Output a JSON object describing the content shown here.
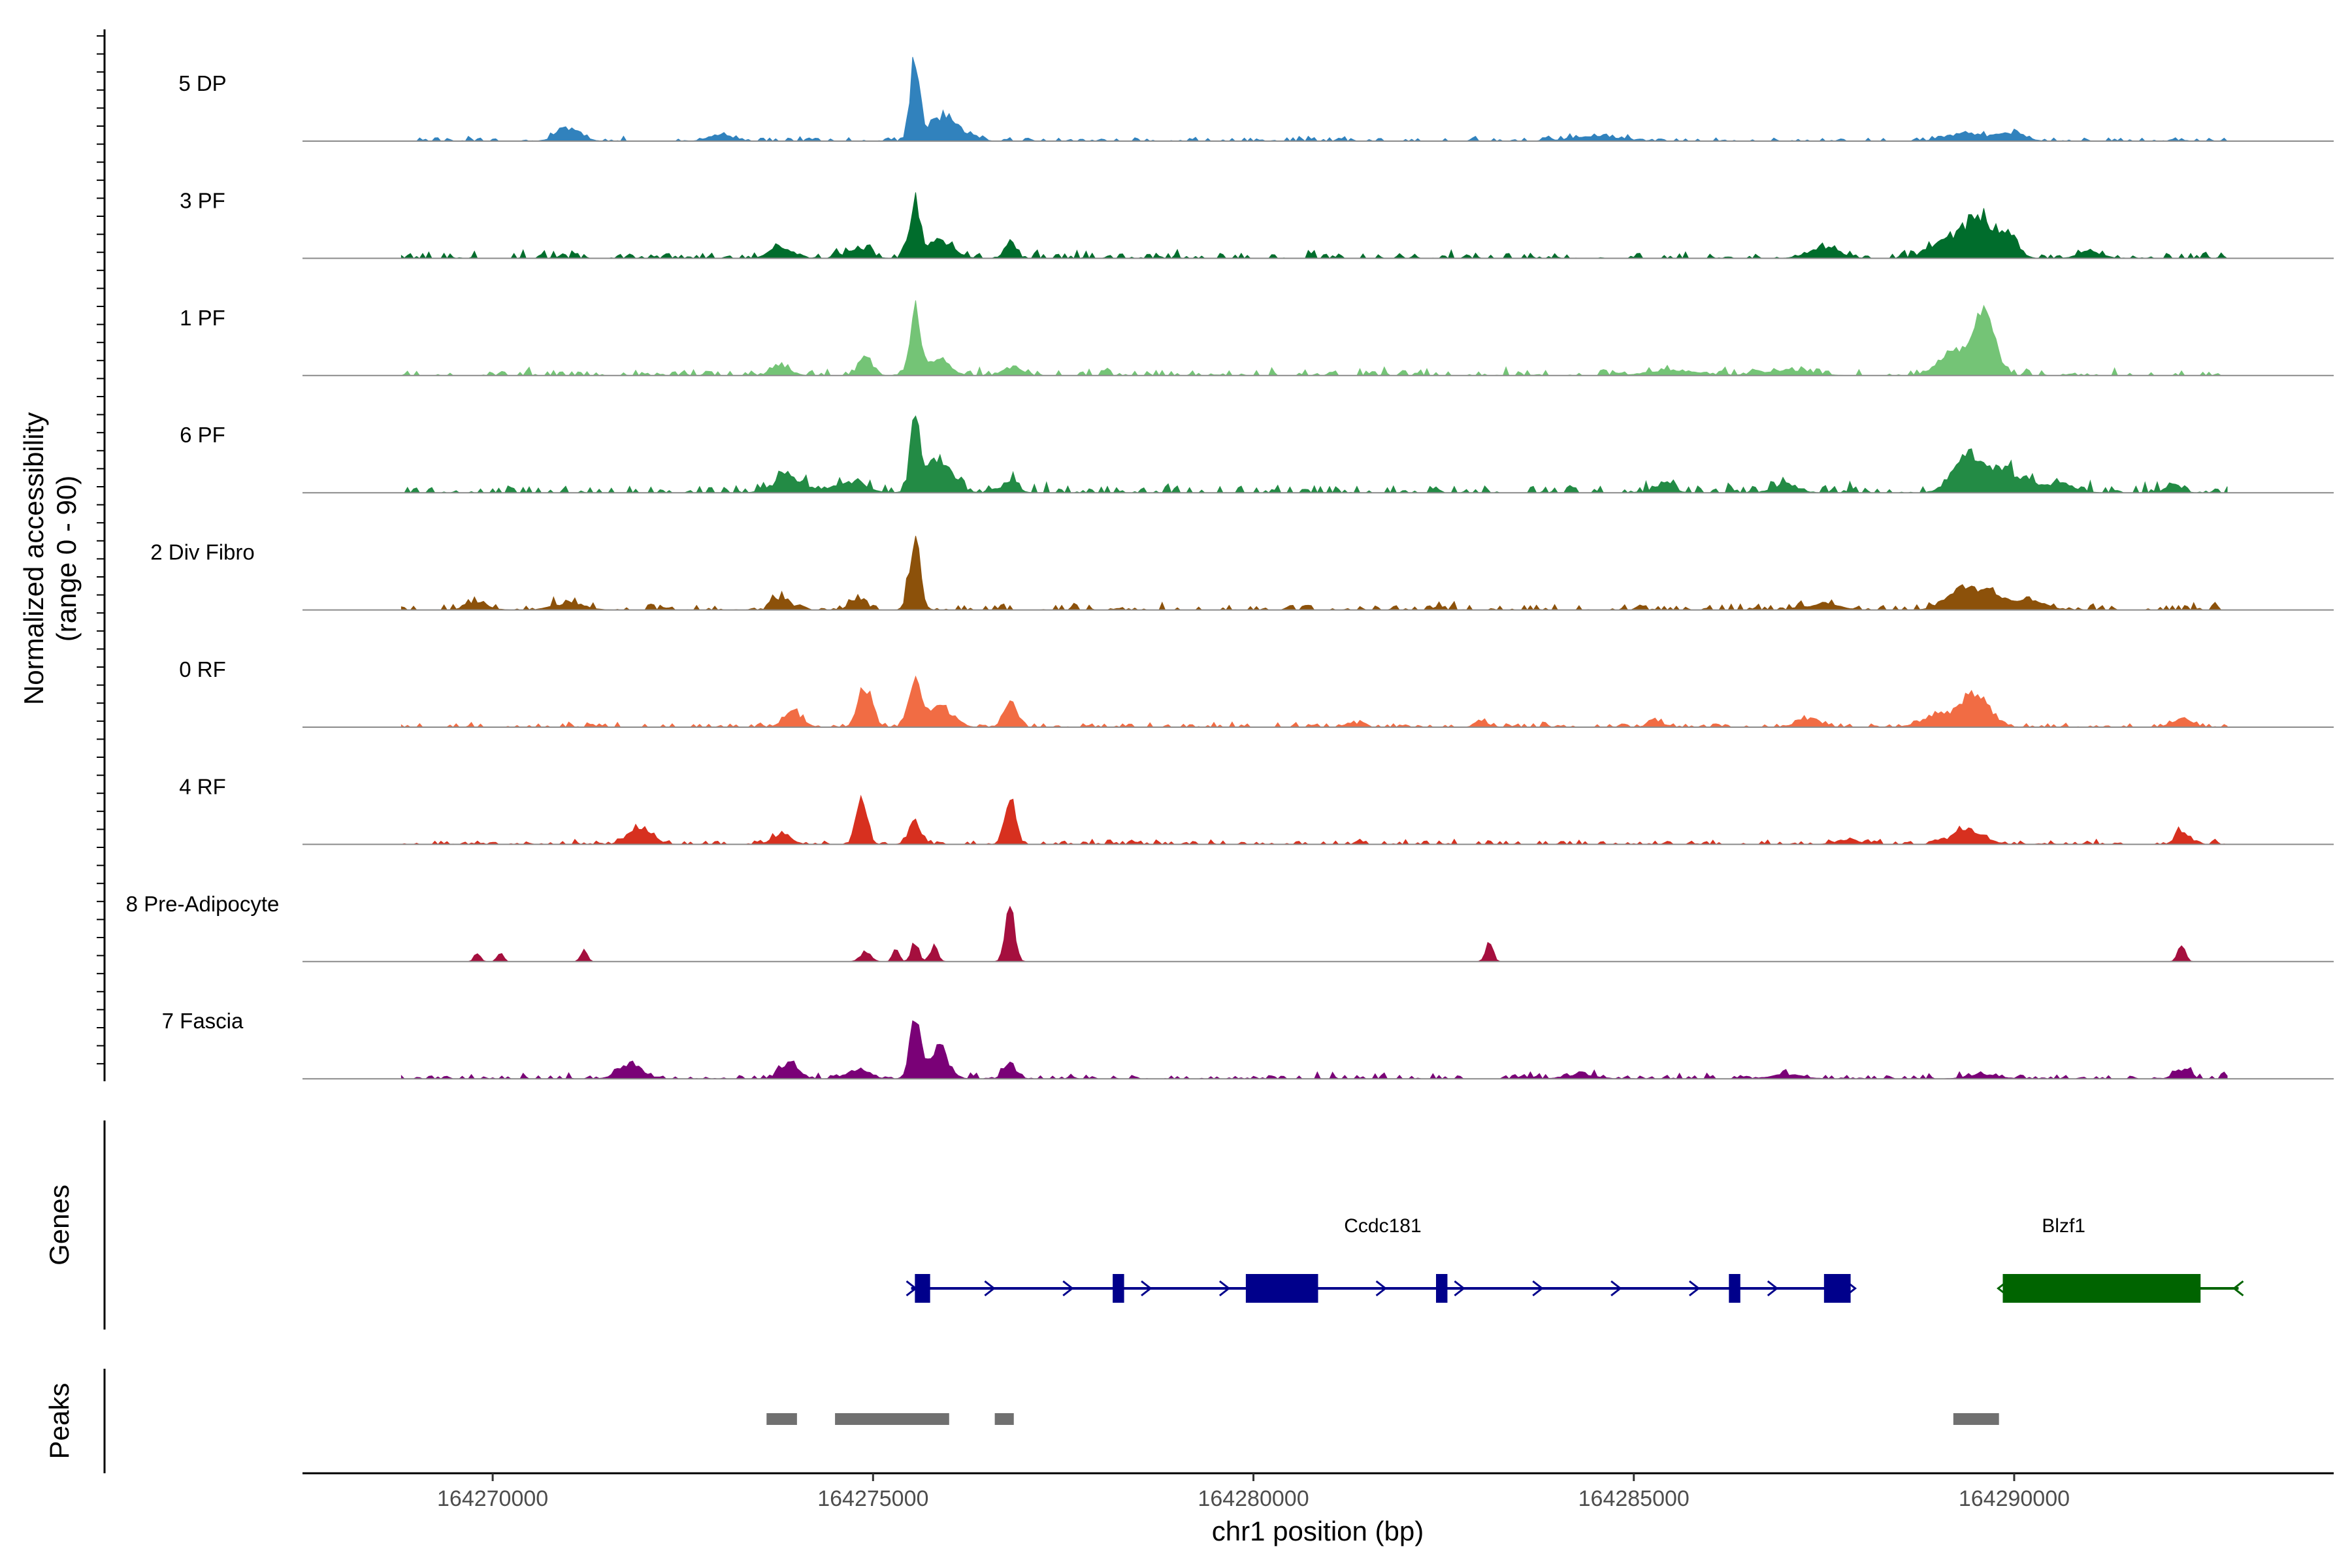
{
  "chart_data": {
    "type": "area",
    "ylabel_line1": "Normalized accessibility",
    "ylabel_line2": "(range 0 - 90)",
    "ylim": [
      0,
      90
    ],
    "xlabel": "chr1 position (bp)",
    "xlim": [
      164267500,
      164294200
    ],
    "xticks": [
      164270000,
      164275000,
      164280000,
      164285000,
      164290000
    ],
    "xtick_labels": [
      "164270000",
      "164275000",
      "164280000",
      "164285000",
      "164290000"
    ],
    "signal_range": [
      164268800,
      164292800
    ],
    "tracks": [
      {
        "name": "5 DP",
        "color": "#3182bd",
        "bg": [
          2,
          3
        ],
        "peaks": [
          [
            164275550,
            78,
            60
          ],
          [
            164275900,
            22,
            160
          ],
          [
            164271000,
            12,
            150
          ],
          [
            164273000,
            6,
            150
          ],
          [
            164276200,
            6,
            150
          ],
          [
            164289400,
            7,
            250
          ],
          [
            164290000,
            7,
            150
          ],
          [
            164284500,
            5,
            300
          ]
        ]
      },
      {
        "name": "3 PF",
        "color": "#006d2c",
        "bg": [
          3,
          5
        ],
        "peaks": [
          [
            164275550,
            50,
            70
          ],
          [
            164275900,
            16,
            160
          ],
          [
            164276800,
            15,
            70
          ],
          [
            164273800,
            10,
            150
          ],
          [
            164274800,
            8,
            150
          ],
          [
            164287500,
            10,
            200
          ],
          [
            164289500,
            36,
            180
          ],
          [
            164289900,
            22,
            130
          ],
          [
            164289050,
            14,
            180
          ],
          [
            164291000,
            6,
            150
          ]
        ]
      },
      {
        "name": "1 PF",
        "color": "#74c476",
        "bg": [
          3,
          5
        ],
        "peaks": [
          [
            164275550,
            65,
            60
          ],
          [
            164275850,
            15,
            150
          ],
          [
            164274900,
            16,
            90
          ],
          [
            164273800,
            8,
            120
          ],
          [
            164276800,
            7,
            100
          ],
          [
            164289600,
            60,
            140
          ],
          [
            164289200,
            18,
            200
          ],
          [
            164287000,
            5,
            300
          ],
          [
            164285500,
            5,
            300
          ]
        ]
      },
      {
        "name": "6 PF",
        "color": "#238b45",
        "bg": [
          4,
          7
        ],
        "peaks": [
          [
            164275550,
            62,
            60
          ],
          [
            164275850,
            28,
            180
          ],
          [
            164276800,
            10,
            100
          ],
          [
            164273900,
            14,
            200
          ],
          [
            164274700,
            10,
            200
          ],
          [
            164285400,
            8,
            120
          ],
          [
            164287000,
            8,
            150
          ],
          [
            164289400,
            30,
            200
          ],
          [
            164289900,
            18,
            250
          ],
          [
            164290600,
            8,
            200
          ],
          [
            164292100,
            8,
            100
          ]
        ]
      },
      {
        "name": "2 Div Fibro",
        "color": "#8c510a",
        "bg": [
          3,
          5
        ],
        "peaks": [
          [
            164275550,
            68,
            70
          ],
          [
            164274800,
            10,
            100
          ],
          [
            164273800,
            12,
            100
          ],
          [
            164271000,
            6,
            200
          ],
          [
            164289300,
            18,
            200
          ],
          [
            164289700,
            12,
            200
          ],
          [
            164290200,
            8,
            200
          ],
          [
            164287500,
            6,
            200
          ],
          [
            164269800,
            6,
            150
          ]
        ]
      },
      {
        "name": "0 RF",
        "color": "#f16c44",
        "bg": [
          2,
          3
        ],
        "peaks": [
          [
            164275550,
            40,
            80
          ],
          [
            164275900,
            18,
            150
          ],
          [
            164274900,
            38,
            90
          ],
          [
            164273950,
            14,
            120
          ],
          [
            164276800,
            25,
            80
          ],
          [
            164289500,
            30,
            180
          ],
          [
            164289000,
            12,
            200
          ],
          [
            164287300,
            8,
            150
          ],
          [
            164292200,
            8,
            120
          ],
          [
            164283000,
            6,
            80
          ],
          [
            164285300,
            5,
            100
          ],
          [
            164281300,
            4,
            100
          ]
        ]
      },
      {
        "name": "4 RF",
        "color": "#d7301f",
        "bg": [
          2,
          3
        ],
        "peaks": [
          [
            164274850,
            45,
            70
          ],
          [
            164276800,
            42,
            70
          ],
          [
            164275550,
            20,
            80
          ],
          [
            164273800,
            10,
            120
          ],
          [
            164271950,
            16,
            150
          ],
          [
            164289400,
            14,
            200
          ],
          [
            164292200,
            12,
            80
          ],
          [
            164287800,
            4,
            150
          ]
        ]
      },
      {
        "name": "8 Pre-Adipocyte",
        "color": "#a50f3e",
        "bg": [
          0,
          0
        ],
        "peaks": [
          [
            164276800,
            48,
            60
          ],
          [
            164275550,
            18,
            50
          ],
          [
            164275800,
            14,
            50
          ],
          [
            164275300,
            12,
            40
          ],
          [
            164274900,
            9,
            70
          ],
          [
            164271200,
            12,
            40
          ],
          [
            164270100,
            8,
            40
          ],
          [
            164269800,
            8,
            40
          ],
          [
            164283100,
            16,
            50
          ],
          [
            164292200,
            14,
            50
          ]
        ]
      },
      {
        "name": "7 Fascia",
        "color": "#7a0177",
        "bg": [
          2,
          4
        ],
        "peaks": [
          [
            164275550,
            50,
            70
          ],
          [
            164275850,
            28,
            130
          ],
          [
            164276800,
            14,
            80
          ],
          [
            164273900,
            14,
            120
          ],
          [
            164271800,
            14,
            150
          ],
          [
            164274800,
            8,
            150
          ],
          [
            164292200,
            8,
            100
          ],
          [
            164287000,
            4,
            200
          ],
          [
            164284300,
            4,
            200
          ],
          [
            164289600,
            4,
            200
          ]
        ]
      }
    ],
    "genes": [
      {
        "name": "Ccdc181",
        "strand": "+",
        "color": "#00008b",
        "start": 164275500,
        "end": 164287850,
        "exons": [
          [
            164275550,
            164275750
          ],
          [
            164278150,
            164278300
          ],
          [
            164279900,
            164280850
          ],
          [
            164282400,
            164282550
          ],
          [
            164286250,
            164286400
          ],
          [
            164287500,
            164287850
          ]
        ]
      },
      {
        "name": "Blzf1",
        "strand": "-",
        "color": "#006400",
        "start": 164289850,
        "end": 164292950,
        "exons": [
          [
            164289850,
            164292450
          ]
        ]
      }
    ],
    "peaks": [
      [
        164273600,
        164274000
      ],
      [
        164274500,
        164276000
      ],
      [
        164276600,
        164276850
      ],
      [
        164289200,
        164289800
      ]
    ],
    "panel_titles": {
      "genes": "Genes",
      "peaks": "Peaks"
    }
  }
}
